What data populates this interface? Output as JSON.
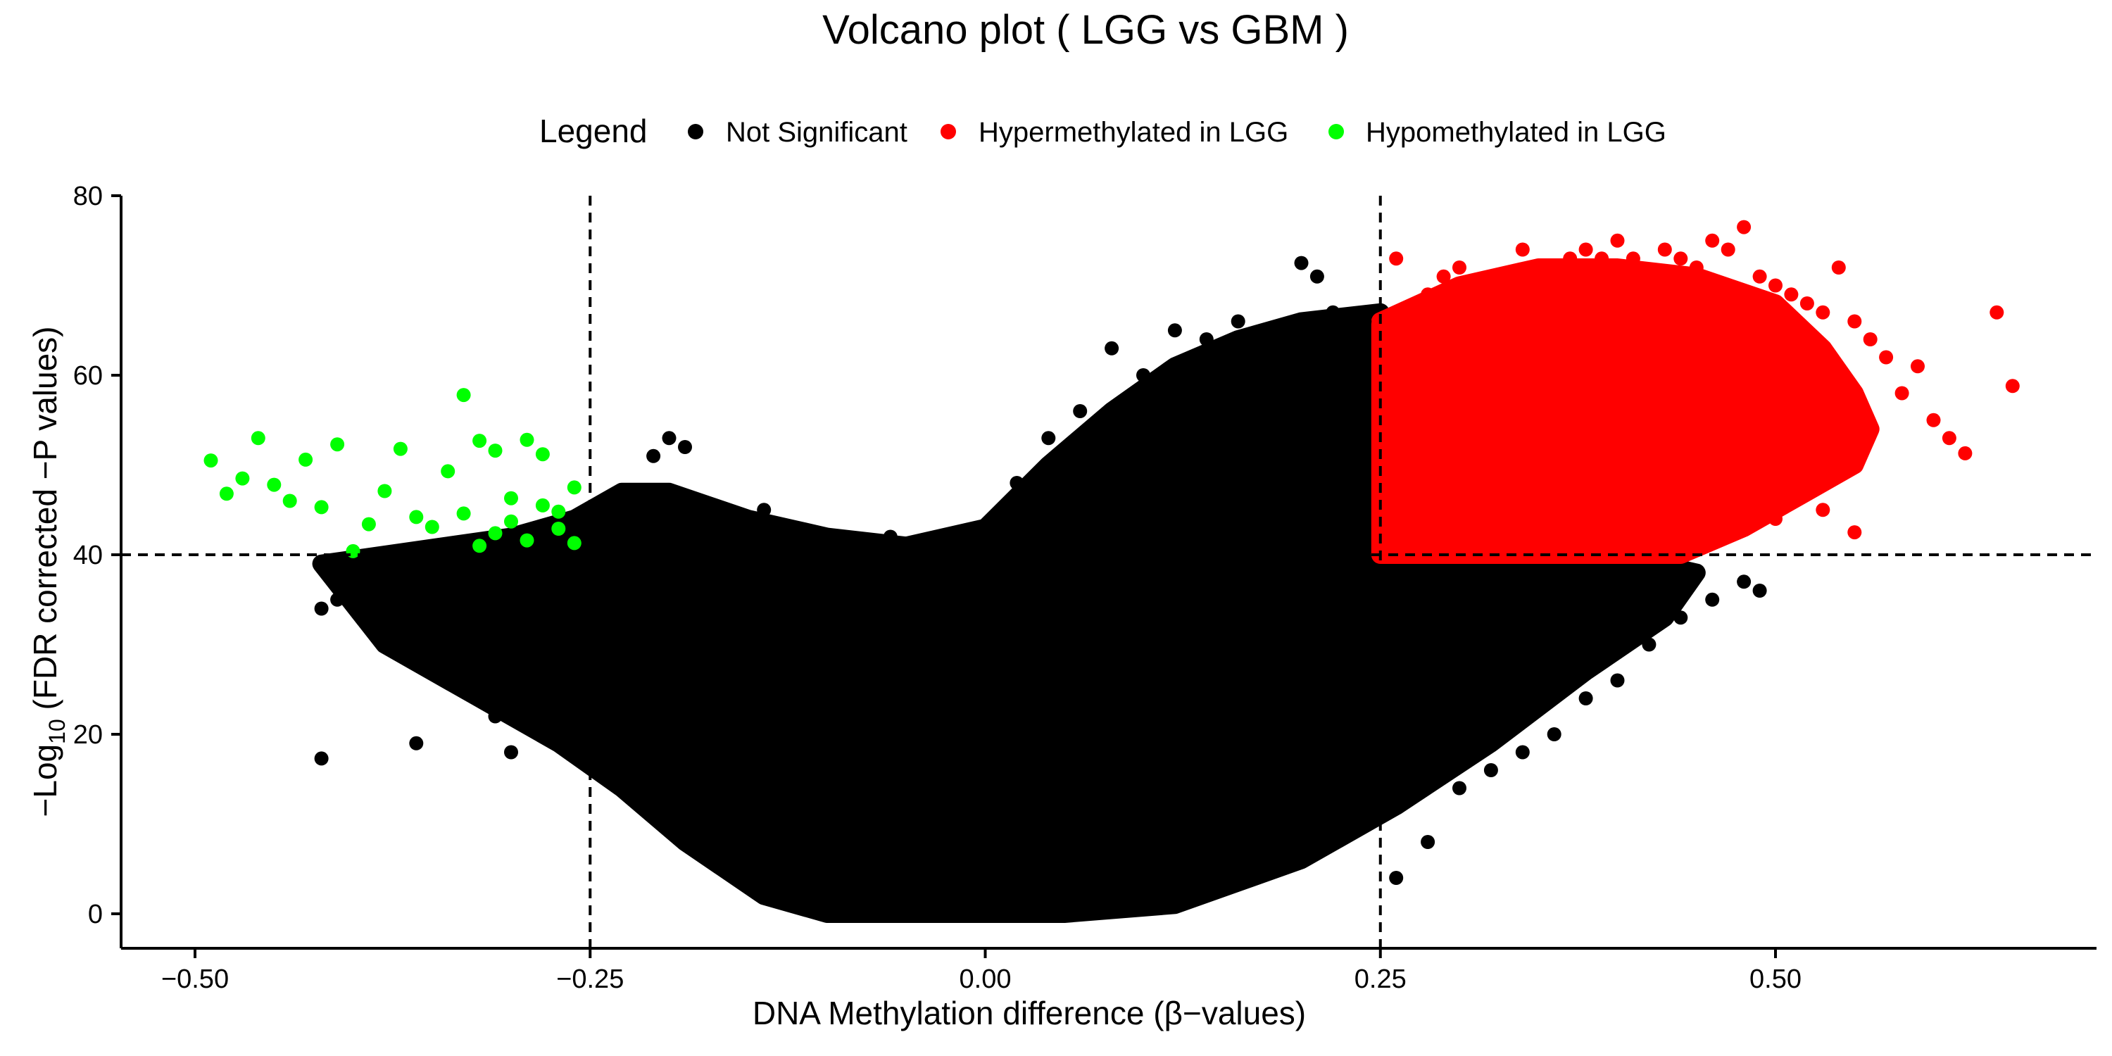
{
  "chart_data": {
    "type": "scatter",
    "title": "Volcano plot ( LGG vs GBM )",
    "xlabel": "DNA Methylation difference (β−values)",
    "ylabel_main": "−Log",
    "ylabel_sub": "10",
    "ylabel_rest": " (FDR corrected −P values)",
    "xlim": [
      -0.5,
      0.65
    ],
    "ylim": [
      0,
      80
    ],
    "x_ticks": [
      {
        "value": -0.5,
        "label": "−0.50"
      },
      {
        "value": -0.25,
        "label": "−0.25"
      },
      {
        "value": 0.0,
        "label": "0.00"
      },
      {
        "value": 0.25,
        "label": "0.25"
      },
      {
        "value": 0.5,
        "label": "0.50"
      }
    ],
    "y_ticks": [
      {
        "value": 0,
        "label": "0"
      },
      {
        "value": 20,
        "label": "20"
      },
      {
        "value": 40,
        "label": "40"
      },
      {
        "value": 60,
        "label": "60"
      },
      {
        "value": 80,
        "label": "80"
      }
    ],
    "thresholds": {
      "x": [
        -0.25,
        0.25
      ],
      "y": 40
    },
    "grid": false,
    "legend": {
      "title": "Legend",
      "placement": "top",
      "entries": [
        {
          "label": "Not Significant",
          "color": "#000000"
        },
        {
          "label": "Hypermethylated in LGG",
          "color": "#ff0000"
        },
        {
          "label": "Hypomethylated in LGG",
          "color": "#00ff00"
        }
      ]
    },
    "series": [
      {
        "name": "Hypomethylated in LGG",
        "color": "#00ff00",
        "x": [
          -0.49,
          -0.48,
          -0.47,
          -0.46,
          -0.45,
          -0.43,
          -0.42,
          -0.41,
          -0.4,
          -0.38,
          -0.37,
          -0.36,
          -0.34,
          -0.33,
          -0.32,
          -0.31,
          -0.3,
          -0.29,
          -0.28,
          -0.27,
          -0.26,
          -0.35,
          -0.31,
          -0.29,
          -0.27,
          -0.33,
          -0.3,
          -0.28,
          -0.26,
          -0.32,
          -0.39,
          -0.44
        ],
        "y": [
          50.5,
          46.8,
          48.5,
          53,
          47.8,
          50.6,
          45.3,
          52.3,
          40.4,
          47.1,
          51.8,
          44.2,
          49.3,
          57.8,
          52.7,
          51.6,
          46.3,
          52.8,
          51.2,
          44.8,
          47.5,
          43.1,
          42.4,
          41.6,
          42.9,
          44.6,
          43.7,
          45.5,
          41.3,
          41,
          43.4,
          46
        ]
      },
      {
        "name": "Hypermethylated in LGG",
        "color": "#ff0000",
        "x": [
          0.26,
          0.27,
          0.28,
          0.29,
          0.3,
          0.31,
          0.32,
          0.33,
          0.34,
          0.35,
          0.36,
          0.37,
          0.38,
          0.39,
          0.4,
          0.41,
          0.42,
          0.43,
          0.44,
          0.45,
          0.46,
          0.47,
          0.48,
          0.49,
          0.5,
          0.51,
          0.52,
          0.53,
          0.54,
          0.55,
          0.56,
          0.57,
          0.58,
          0.59,
          0.6,
          0.61,
          0.62,
          0.64,
          0.65,
          0.255,
          0.3,
          0.35,
          0.4,
          0.45,
          0.5,
          0.55,
          0.28,
          0.33,
          0.38,
          0.43,
          0.48,
          0.53
        ],
        "y": [
          73,
          65,
          69,
          71,
          72,
          66,
          70,
          68,
          74,
          72,
          71,
          73,
          74,
          73,
          75,
          73,
          71,
          74,
          73,
          72,
          75,
          74,
          76.5,
          71,
          70,
          69,
          68,
          67,
          72,
          66,
          64,
          62,
          58,
          61,
          55,
          53,
          51.3,
          67,
          58.8,
          41,
          40.5,
          41.2,
          42,
          43,
          44,
          42.5,
          55,
          52,
          50,
          48,
          46,
          45
        ]
      },
      {
        "name": "Not Significant",
        "color": "#000000",
        "x": [
          -0.42,
          -0.41,
          -0.39,
          -0.38,
          -0.37,
          -0.36,
          -0.35,
          -0.34,
          -0.33,
          -0.32,
          -0.31,
          -0.3,
          -0.29,
          -0.28,
          -0.27,
          -0.26,
          -0.25,
          -0.24,
          -0.23,
          -0.22,
          -0.21,
          -0.2,
          -0.19,
          -0.18,
          -0.17,
          -0.16,
          -0.15,
          -0.14,
          -0.12,
          -0.1,
          -0.08,
          -0.06,
          -0.04,
          -0.02,
          0.0,
          0.02,
          0.04,
          0.06,
          0.08,
          0.1,
          0.12,
          0.14,
          0.16,
          0.18,
          0.2,
          0.21,
          0.22,
          0.24,
          0.26,
          0.28,
          0.3,
          0.32,
          0.34,
          0.36,
          0.38,
          0.4,
          0.42,
          0.44,
          0.46,
          0.48,
          0.49,
          0.37,
          -0.42,
          -0.36
        ],
        "y": [
          34,
          35,
          38,
          30,
          36,
          31,
          28,
          33,
          25,
          29,
          22,
          18,
          30,
          26,
          23,
          20,
          18,
          44,
          46,
          45,
          51,
          53,
          52,
          45,
          44,
          43,
          42,
          45,
          40,
          39,
          38,
          42,
          36,
          34,
          41,
          48,
          53,
          56,
          63,
          60,
          65,
          64,
          66,
          62,
          72.5,
          71,
          67,
          66,
          4,
          8,
          14,
          16,
          18,
          20,
          24,
          26,
          30,
          33,
          35,
          37,
          36,
          31,
          17.3,
          19
        ]
      }
    ],
    "regions": [
      {
        "name": "Not Significant",
        "color": "#000000",
        "polygon_data": [
          [
            -0.42,
            39
          ],
          [
            -0.3,
            42
          ],
          [
            -0.26,
            44
          ],
          [
            -0.23,
            47
          ],
          [
            -0.2,
            47
          ],
          [
            -0.15,
            44
          ],
          [
            -0.1,
            42
          ],
          [
            -0.05,
            41
          ],
          [
            0.0,
            43
          ],
          [
            0.04,
            50
          ],
          [
            0.08,
            56
          ],
          [
            0.12,
            61
          ],
          [
            0.16,
            64
          ],
          [
            0.2,
            66
          ],
          [
            0.25,
            67
          ],
          [
            0.25,
            40
          ],
          [
            0.4,
            40
          ],
          [
            0.45,
            38
          ],
          [
            0.43,
            33
          ],
          [
            0.38,
            27
          ],
          [
            0.32,
            19
          ],
          [
            0.26,
            12
          ],
          [
            0.2,
            6
          ],
          [
            0.12,
            1
          ],
          [
            0.05,
            0
          ],
          [
            -0.1,
            0
          ],
          [
            -0.14,
            2
          ],
          [
            -0.19,
            8
          ],
          [
            -0.23,
            14
          ],
          [
            -0.27,
            19
          ],
          [
            -0.32,
            24
          ],
          [
            -0.38,
            30
          ]
        ]
      },
      {
        "name": "Hypermethylated in LGG",
        "color": "#ff0000",
        "polygon_data": [
          [
            0.25,
            40
          ],
          [
            0.25,
            66
          ],
          [
            0.3,
            70
          ],
          [
            0.35,
            72
          ],
          [
            0.4,
            72
          ],
          [
            0.45,
            71
          ],
          [
            0.5,
            68
          ],
          [
            0.53,
            63
          ],
          [
            0.55,
            58
          ],
          [
            0.56,
            54
          ],
          [
            0.55,
            50
          ],
          [
            0.52,
            47
          ],
          [
            0.48,
            43
          ],
          [
            0.44,
            40
          ]
        ]
      }
    ]
  }
}
